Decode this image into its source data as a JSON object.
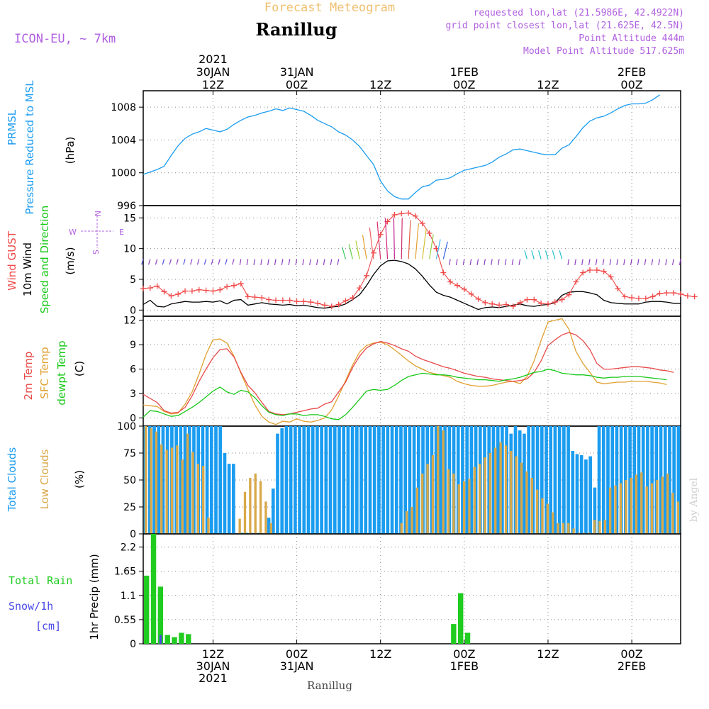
{
  "header": {
    "subtitle": "Forecast Meteogram",
    "station": "Ranillug",
    "model": "ICON-EU, ~ 7km",
    "requested": "requested lon,lat (21.5986E, 42.4922N)",
    "gridpoint": "grid point closest lon,lat (21.625E, 42.5N)",
    "altitude": "Point Altitude 444m",
    "model_altitude": "Model Point Altitude 517.625m",
    "footer_station": "Ranillug",
    "credit": "by Angel"
  },
  "colors": {
    "pressure": "#1a9cf0",
    "gust": "#f04848",
    "wind": "#000000",
    "temp2m": "#e84848",
    "sfc": "#e0a030",
    "dewpt": "#18c818",
    "total_cloud": "#1a9cf0",
    "low_cloud": "#d8a848",
    "rain": "#20cc20",
    "snow": "#4848e8",
    "label_purple": "#b060e0"
  },
  "time_axis": {
    "start": "2021-01-30 02Z",
    "step_hours": 1,
    "top_ticks": [
      {
        "hour": 10,
        "lines": [
          "2021",
          "30JAN",
          "12Z"
        ]
      },
      {
        "hour": 22,
        "lines": [
          "31JAN",
          "00Z"
        ]
      },
      {
        "hour": 34,
        "lines": [
          "12Z"
        ]
      },
      {
        "hour": 46,
        "lines": [
          "1FEB",
          "00Z"
        ]
      },
      {
        "hour": 58,
        "lines": [
          "12Z"
        ]
      },
      {
        "hour": 70,
        "lines": [
          "2FEB",
          "00Z"
        ]
      }
    ],
    "bottom_ticks": [
      {
        "hour": 10,
        "lines": [
          "12Z",
          "30JAN",
          "2021"
        ]
      },
      {
        "hour": 22,
        "lines": [
          "00Z",
          "31JAN"
        ]
      },
      {
        "hour": 34,
        "lines": [
          "12Z"
        ]
      },
      {
        "hour": 46,
        "lines": [
          "00Z",
          "1FEB"
        ]
      },
      {
        "hour": 58,
        "lines": [
          "12Z"
        ]
      },
      {
        "hour": 70,
        "lines": [
          "00Z",
          "2FEB"
        ]
      }
    ]
  },
  "chart_data": [
    {
      "type": "line",
      "panel": "pressure",
      "ylabel_lines": [
        "PRMSL",
        "Pressure Reduced to MSL"
      ],
      "unit": "(hPa)",
      "ylim": [
        996,
        1010
      ],
      "yticks": [
        996,
        1000,
        1004,
        1008
      ],
      "series": [
        {
          "values": [
            999.8,
            1000.1,
            1000.4,
            1000.8,
            1002.1,
            1003.3,
            1004.2,
            1004.7,
            1005.0,
            1005.4,
            1005.2,
            1005.0,
            1005.3,
            1005.9,
            1006.4,
            1006.8,
            1007.0,
            1007.3,
            1007.5,
            1007.8,
            1007.6,
            1007.9,
            1007.7,
            1007.5,
            1007.0,
            1006.4,
            1006.0,
            1005.6,
            1005.0,
            1004.6,
            1004.0,
            1003.2,
            1002.1,
            1001.0,
            999.0,
            997.8,
            997.1,
            996.8,
            996.8,
            997.6,
            998.3,
            998.5,
            999.1,
            999.2,
            999.4,
            999.9,
            1000.3,
            1000.5,
            1000.7,
            1000.9,
            1001.3,
            1001.9,
            1002.3,
            1002.8,
            1002.9,
            1002.7,
            1002.5,
            1002.3,
            1002.2,
            1002.2,
            1003.0,
            1003.4,
            1004.4,
            1005.5,
            1006.3,
            1006.7,
            1006.9,
            1007.3,
            1007.8,
            1008.2,
            1008.4,
            1008.4,
            1008.5,
            1008.9,
            1009.5
          ]
        }
      ]
    },
    {
      "type": "line",
      "panel": "wind",
      "ylabel_lines": [
        "Wind GUST",
        "10m Wind",
        "Speed and Direction"
      ],
      "unit": "(m/s)",
      "compass": {
        "n": "N",
        "s": "S",
        "e": "E",
        "w": "W"
      },
      "ylim": [
        -1,
        17
      ],
      "yticks": [
        0,
        5,
        10,
        15
      ],
      "series": [
        {
          "name": "Wind GUST",
          "values": [
            3.5,
            3.6,
            3.9,
            3.0,
            2.3,
            2.6,
            3.1,
            3.1,
            3.3,
            3.2,
            3.1,
            3.3,
            3.8,
            4.0,
            4.3,
            2.2,
            2.1,
            2.0,
            1.7,
            1.6,
            1.6,
            1.6,
            1.4,
            1.4,
            1.3,
            1.1,
            0.8,
            0.6,
            0.9,
            1.5,
            2.0,
            3.6,
            5.6,
            9.3,
            12.3,
            14.4,
            15.5,
            15.7,
            15.8,
            15.3,
            14.1,
            12.5,
            10.0,
            6.1,
            4.6,
            4.0,
            3.4,
            2.6,
            1.8,
            1.2,
            1.0,
            0.8,
            0.9,
            0.6,
            1.2,
            1.7,
            1.7,
            1.1,
            1.0,
            1.3,
            1.7,
            2.5,
            4.6,
            6.1,
            6.5,
            6.5,
            6.3,
            5.4,
            3.5,
            2.2,
            2.0,
            1.9,
            1.9,
            2.2,
            2.7,
            2.8,
            2.8,
            2.6,
            2.3,
            2.2
          ]
        },
        {
          "name": "10m Wind",
          "values": [
            0.9,
            1.6,
            0.6,
            0.5,
            1.0,
            1.2,
            1.4,
            1.3,
            1.3,
            1.4,
            1.3,
            1.5,
            1.0,
            1.6,
            1.7,
            0.8,
            1.0,
            1.2,
            1.0,
            0.9,
            0.8,
            0.9,
            0.7,
            0.8,
            0.6,
            0.4,
            0.3,
            0.5,
            0.6,
            1.0,
            1.7,
            2.5,
            4.0,
            5.8,
            7.2,
            8.0,
            8.1,
            7.9,
            7.5,
            6.7,
            5.5,
            4.1,
            2.9,
            2.4,
            2.1,
            1.6,
            1.1,
            0.6,
            0.1,
            0.4,
            0.5,
            0.4,
            0.6,
            0.8,
            1.0,
            0.7,
            0.6,
            0.8,
            0.9,
            1.2,
            2.4,
            2.9,
            3.0,
            3.0,
            2.8,
            2.5,
            1.6,
            1.2,
            1.1,
            1.0,
            1.0,
            1.0,
            1.3,
            1.4,
            1.4,
            1.3,
            1.1,
            1.1
          ]
        }
      ]
    },
    {
      "type": "line",
      "panel": "temperature",
      "ylabel_lines": [
        "2m Temp",
        "SFC Temp",
        "dewpt Temp"
      ],
      "unit": "(C)",
      "ylim": [
        -1,
        12.5
      ],
      "yticks": [
        0,
        3,
        6,
        9,
        12
      ],
      "series": [
        {
          "name": "2m Temp",
          "values": [
            2.9,
            2.4,
            1.9,
            0.9,
            0.6,
            0.7,
            1.3,
            2.7,
            4.5,
            6.0,
            7.4,
            8.4,
            8.5,
            7.5,
            5.6,
            4.0,
            3.1,
            1.9,
            0.8,
            0.5,
            0.4,
            0.5,
            0.7,
            0.9,
            1.1,
            1.2,
            1.7,
            2.0,
            3.2,
            4.4,
            6.2,
            7.6,
            8.6,
            9.1,
            9.4,
            9.2,
            8.9,
            8.5,
            8.2,
            7.6,
            7.2,
            6.9,
            6.6,
            6.3,
            6.1,
            5.8,
            5.5,
            5.3,
            5.1,
            5.0,
            4.8,
            4.7,
            4.6,
            4.5,
            4.6,
            4.8,
            5.6,
            7.0,
            8.9,
            9.6,
            10.2,
            10.5,
            10.2,
            9.5,
            8.4,
            6.7,
            6.0,
            6.0,
            6.1,
            6.2,
            6.3,
            6.3,
            6.2,
            6.1,
            5.9,
            5.8,
            5.6
          ]
        },
        {
          "name": "SFC Temp",
          "values": [
            1.6,
            1.5,
            1.4,
            0.8,
            0.5,
            0.6,
            1.7,
            3.2,
            5.4,
            7.8,
            9.6,
            9.7,
            9.2,
            7.6,
            5.5,
            3.5,
            1.6,
            0.2,
            -0.5,
            -0.8,
            -0.4,
            -0.5,
            -0.1,
            -0.4,
            -0.5,
            -0.3,
            0.0,
            1.0,
            2.7,
            4.6,
            6.5,
            8.1,
            8.9,
            9.2,
            9.3,
            9.0,
            8.4,
            7.7,
            7.0,
            6.4,
            6.0,
            5.6,
            5.4,
            5.2,
            5.0,
            4.5,
            4.2,
            4.0,
            3.9,
            3.9,
            4.0,
            4.2,
            4.4,
            4.5,
            4.2,
            5.1,
            7.0,
            9.5,
            11.8,
            12.0,
            12.2,
            10.9,
            8.2,
            6.7,
            5.6,
            4.4,
            4.2,
            4.3,
            4.4,
            4.4,
            4.5,
            4.5,
            4.5,
            4.4,
            4.3,
            4.1
          ]
        },
        {
          "name": "dewpt Temp",
          "values": [
            0.1,
            0.9,
            0.8,
            0.5,
            0.2,
            0.3,
            0.8,
            1.3,
            1.9,
            2.6,
            3.3,
            3.8,
            3.2,
            2.9,
            3.4,
            3.2,
            2.5,
            1.5,
            0.7,
            0.4,
            0.3,
            0.5,
            0.5,
            0.3,
            0.4,
            0.4,
            0.2,
            -0.1,
            -0.2,
            0.4,
            1.3,
            2.3,
            3.3,
            3.5,
            3.4,
            3.5,
            4.0,
            4.6,
            5.1,
            5.3,
            5.5,
            5.4,
            5.3,
            5.3,
            5.2,
            5.0,
            4.9,
            4.8,
            4.7,
            4.7,
            4.6,
            4.5,
            4.7,
            4.8,
            5.0,
            5.3,
            5.6,
            5.7,
            6.0,
            5.8,
            5.5,
            5.4,
            5.3,
            5.3,
            5.2,
            5.0,
            4.9,
            5.0,
            5.0,
            5.1,
            5.1,
            5.1,
            5.0,
            4.9,
            4.8,
            4.7
          ]
        }
      ]
    },
    {
      "type": "bar",
      "panel": "clouds",
      "ylabel_lines": [
        "Total Clouds",
        "Low Clouds"
      ],
      "unit": "(%)",
      "ylim": [
        0,
        100
      ],
      "yticks": [
        0,
        25,
        50,
        75,
        100
      ],
      "series": [
        {
          "name": "Total Clouds",
          "values": [
            100,
            100,
            100,
            100,
            100,
            100,
            100,
            100,
            100,
            100,
            100,
            100,
            100,
            100,
            100,
            100,
            100,
            100,
            75,
            65,
            65,
            0,
            1,
            1,
            1,
            1,
            1,
            0,
            15,
            42,
            93,
            98,
            100,
            100,
            100,
            100,
            100,
            100,
            100,
            100,
            100,
            100,
            100,
            100,
            100,
            100,
            100,
            100,
            100,
            100,
            100,
            100,
            100,
            100,
            100,
            100,
            100,
            100,
            100,
            100,
            100,
            100,
            100,
            100,
            100,
            100,
            100,
            100,
            100,
            100,
            100,
            100,
            100,
            100,
            100,
            100,
            100,
            100,
            100,
            100,
            100,
            100,
            100,
            93,
            100,
            96,
            93,
            100,
            100,
            100,
            100,
            100,
            100,
            100,
            100,
            100,
            100,
            77,
            74,
            73,
            69,
            72,
            43,
            100,
            100,
            100,
            100,
            100,
            100,
            100,
            100,
            100,
            100,
            100,
            100,
            100,
            100,
            100,
            100,
            100,
            100,
            100
          ]
        },
        {
          "name": "Low Clouds",
          "values": [
            100,
            98,
            95,
            83,
            78,
            80,
            82,
            69,
            93,
            76,
            65,
            63,
            15,
            0,
            0,
            0,
            0,
            0,
            14,
            39,
            52,
            56,
            49,
            30,
            10,
            0,
            0,
            0,
            0,
            0,
            0,
            0,
            0,
            0,
            0,
            0,
            0,
            0,
            0,
            0,
            0,
            0,
            0,
            0,
            0,
            0,
            0,
            0,
            0,
            10,
            21,
            25,
            43,
            56,
            65,
            73,
            100,
            96,
            60,
            56,
            46,
            49,
            51,
            62,
            65,
            71,
            75,
            80,
            85,
            82,
            77,
            72,
            66,
            58,
            52,
            41,
            33,
            28,
            20,
            10,
            10,
            10,
            5,
            1,
            1,
            1,
            13,
            12,
            13,
            43,
            45,
            47,
            50,
            52,
            55,
            57,
            44,
            47,
            50,
            53,
            56,
            38,
            30
          ]
        }
      ]
    },
    {
      "type": "bar",
      "panel": "precip",
      "ylabel_lines": [
        "1hr Precip (mm)"
      ],
      "legend_lines": [
        "Total  Rain",
        "Snow/1h",
        "[cm]"
      ],
      "ylim": [
        0,
        2.5
      ],
      "yticks": [
        0,
        0.55,
        1.1,
        1.65,
        2.2
      ],
      "series": [
        {
          "name": "Total Rain",
          "values": [
            1.55,
            2.5,
            1.3,
            0.2,
            0.15,
            0.25,
            0.22,
            0,
            0,
            0,
            0,
            0,
            0,
            0,
            0,
            0,
            0,
            0,
            0,
            0,
            0,
            0,
            0,
            0,
            0,
            0,
            0,
            0,
            0,
            0,
            0,
            0,
            0,
            0,
            0,
            0,
            0,
            0,
            0,
            0,
            0,
            0,
            0,
            0,
            0.45,
            1.15,
            0.25,
            0,
            0,
            0,
            0,
            0,
            0,
            0,
            0,
            0,
            0,
            0,
            0,
            0,
            0,
            0,
            0,
            0,
            0,
            0,
            0,
            0,
            0,
            0,
            0,
            0,
            0,
            0,
            0,
            0,
            0
          ]
        },
        {
          "name": "Snow/1h",
          "values": [
            0,
            0,
            0.2,
            0,
            0,
            0,
            0,
            0,
            0,
            0,
            0,
            0,
            0,
            0,
            0,
            0,
            0,
            0,
            0,
            0,
            0,
            0,
            0,
            0,
            0,
            0,
            0,
            0,
            0,
            0,
            0,
            0,
            0,
            0,
            0,
            0,
            0,
            0,
            0,
            0,
            0,
            0,
            0,
            0,
            0,
            0,
            0,
            0,
            0,
            0,
            0,
            0,
            0,
            0,
            0,
            0,
            0,
            0,
            0,
            0,
            0,
            0,
            0,
            0,
            0,
            0,
            0,
            0,
            0,
            0,
            0,
            0,
            0,
            0,
            0,
            0,
            0
          ]
        }
      ]
    }
  ]
}
